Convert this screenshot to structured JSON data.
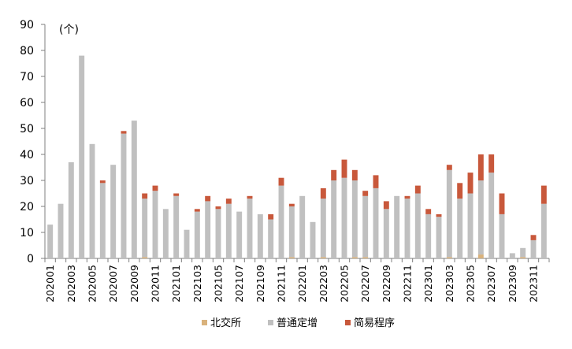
{
  "chart_data": {
    "type": "bar",
    "stacked": true,
    "unit": "(个)",
    "ylim": [
      0,
      90
    ],
    "yticks": [
      0,
      10,
      20,
      30,
      40,
      50,
      60,
      70,
      80,
      90
    ],
    "grid": false,
    "legend_position": "bottom",
    "categories": [
      "202001",
      "202002",
      "202003",
      "202004",
      "202005",
      "202006",
      "202007",
      "202008",
      "202009",
      "202010",
      "202011",
      "202012",
      "202101",
      "202102",
      "202103",
      "202104",
      "202105",
      "202106",
      "202107",
      "202108",
      "202109",
      "202110",
      "202111",
      "202112",
      "202201",
      "202202",
      "202203",
      "202204",
      "202205",
      "202206",
      "202207",
      "202208",
      "202209",
      "202210",
      "202211",
      "202212",
      "202301",
      "202302",
      "202303",
      "202304",
      "202305",
      "202306",
      "202307",
      "202308",
      "202309",
      "202310",
      "202311",
      "202312"
    ],
    "x_tick_labels": [
      "202001",
      "202003",
      "202005",
      "202007",
      "202009",
      "202011",
      "202101",
      "202103",
      "202105",
      "202107",
      "202109",
      "202111",
      "202201",
      "202203",
      "202205",
      "202207",
      "202209",
      "202211",
      "202301",
      "202303",
      "202305",
      "202307",
      "202309",
      "202311"
    ],
    "series": [
      {
        "name": "北交所",
        "color": "#d9b27c",
        "values": [
          0,
          0,
          0,
          0,
          0,
          0,
          0,
          0,
          0,
          0.5,
          0,
          0,
          0,
          0,
          0,
          0,
          0,
          0,
          0,
          0,
          0,
          0,
          0,
          0.5,
          0,
          0,
          0.5,
          0,
          0,
          0.5,
          0.5,
          0,
          0,
          0,
          0,
          0,
          0,
          0,
          0.5,
          0,
          0,
          1.5,
          0,
          0,
          0,
          0.5,
          0,
          0
        ]
      },
      {
        "name": "普通定增",
        "color": "#c0c0c0",
        "values": [
          13,
          21,
          37,
          78,
          44,
          29,
          36,
          48,
          53,
          22.5,
          26,
          19,
          24,
          11,
          18,
          22,
          19,
          21,
          18,
          23,
          17,
          15,
          28,
          19.5,
          24,
          14,
          22.5,
          30,
          31,
          29.5,
          23.5,
          27,
          19,
          24,
          23,
          25,
          17,
          16,
          33.5,
          23,
          25,
          28.5,
          33,
          17,
          2,
          3.5,
          7,
          21
        ]
      },
      {
        "name": "简易程序",
        "color": "#c8583b",
        "values": [
          0,
          0,
          0,
          0,
          0,
          1,
          0,
          1,
          0,
          2,
          2,
          0,
          1,
          0,
          1,
          2,
          1,
          2,
          0,
          1,
          0,
          2,
          3,
          1,
          0,
          0,
          4,
          4,
          7,
          4,
          2,
          5,
          3,
          0,
          1,
          3,
          2,
          1,
          2,
          6,
          8,
          10,
          7,
          8,
          0,
          0,
          2,
          7
        ]
      }
    ]
  }
}
